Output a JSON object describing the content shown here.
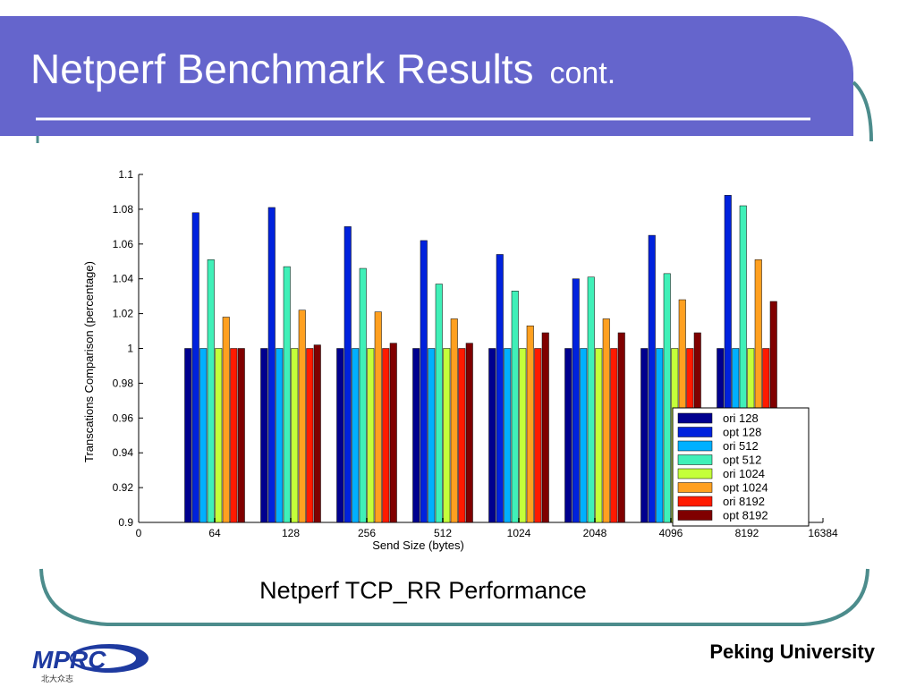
{
  "slide": {
    "title": "Netperf Benchmark Results",
    "subtitle": "cont.",
    "caption": "Netperf TCP_RR Performance",
    "footer": "Peking University",
    "logo": {
      "text": "MPRC",
      "subtext": "北大众志"
    },
    "colors": {
      "banner": "#6565cc",
      "frame_line": "#4c8c8c",
      "banner_line": "#ffffff"
    }
  },
  "chart_data": {
    "type": "bar",
    "xlabel": "Send Size (bytes)",
    "ylabel": "Transcations Comparison (percentage)",
    "ylim": [
      0.9,
      1.1
    ],
    "yticks": [
      "0.9",
      "0.92",
      "0.94",
      "0.96",
      "0.98",
      "1",
      "1.02",
      "1.04",
      "1.06",
      "1.08",
      "1.1"
    ],
    "xtick_labels": [
      "0",
      "64",
      "128",
      "256",
      "512",
      "1024",
      "2048",
      "4096",
      "8192",
      "16384"
    ],
    "categories": [
      "64",
      "128",
      "256",
      "512",
      "1024",
      "2048",
      "4096",
      "8192"
    ],
    "legend_position": "bottom-right",
    "series": [
      {
        "name": "ori 128",
        "color": "#00008f",
        "values": [
          1,
          1,
          1,
          1,
          1,
          1,
          1,
          1
        ]
      },
      {
        "name": "opt 128",
        "color": "#0022dd",
        "values": [
          1.078,
          1.081,
          1.07,
          1.062,
          1.054,
          1.04,
          1.065,
          1.088
        ]
      },
      {
        "name": "ori 512",
        "color": "#00b0ff",
        "values": [
          1,
          1,
          1,
          1,
          1,
          1,
          1,
          1
        ]
      },
      {
        "name": "opt 512",
        "color": "#40f0b8",
        "values": [
          1.051,
          1.047,
          1.046,
          1.037,
          1.033,
          1.041,
          1.043,
          1.082
        ]
      },
      {
        "name": "ori 1024",
        "color": "#c4ff3a",
        "values": [
          1,
          1,
          1,
          1,
          1,
          1,
          1,
          1
        ]
      },
      {
        "name": "opt 1024",
        "color": "#ffa020",
        "values": [
          1.018,
          1.022,
          1.021,
          1.017,
          1.013,
          1.017,
          1.028,
          1.051
        ]
      },
      {
        "name": "ori 8192",
        "color": "#ff1a00",
        "values": [
          1,
          1,
          1,
          1,
          1,
          1,
          1,
          1
        ]
      },
      {
        "name": "opt 8192",
        "color": "#800000",
        "values": [
          1.0,
          1.002,
          1.003,
          1.003,
          1.009,
          1.009,
          1.009,
          1.027
        ]
      }
    ]
  }
}
